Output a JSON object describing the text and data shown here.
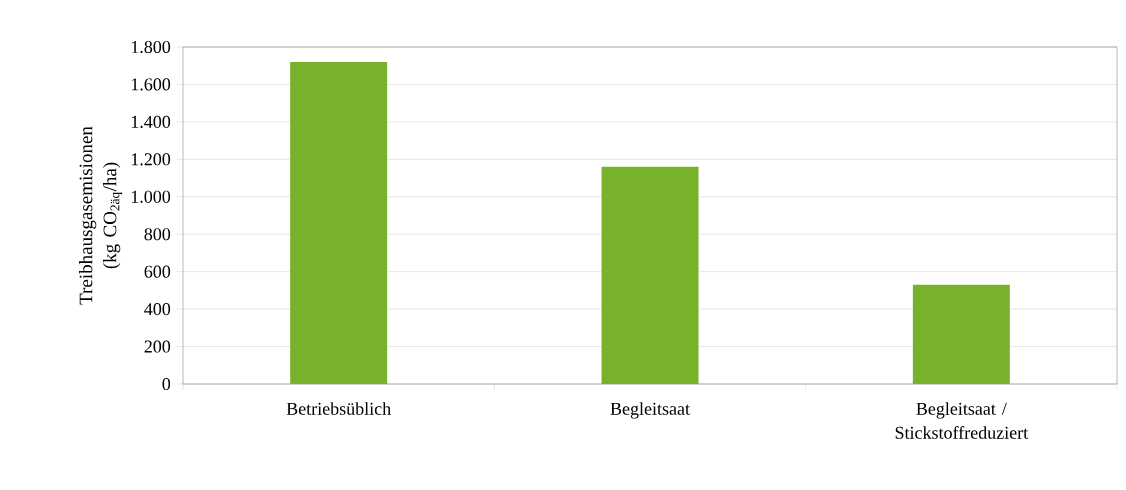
{
  "chart_data": {
    "type": "bar",
    "ylabel": "Treibhausgasemisionen (kg CO$_{2äq}$/ha)",
    "categories": [
      "Betriebsüblich",
      "Begleitsaat",
      "Begleitsaat / Stickstoffreduziert"
    ],
    "values": [
      1720,
      1160,
      530
    ],
    "color": "#78b22a",
    "ylim": [
      0,
      1800
    ],
    "yticks": [
      0,
      200,
      400,
      600,
      800,
      {
        "value": 1000,
        "label": "1.000"
      },
      {
        "value": 1200,
        "label": "1.200"
      },
      {
        "value": 1400,
        "label": "1.400"
      },
      {
        "value": 1600,
        "label": "1.600"
      },
      {
        "value": 1800,
        "label": "1.800"
      }
    ],
    "grid": "y"
  }
}
